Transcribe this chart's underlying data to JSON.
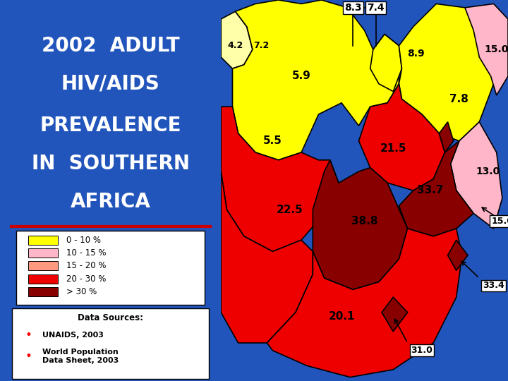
{
  "title_line1": "2002  ADULT",
  "title_line2": "HIV/AIDS",
  "title_line3": "PREVALENCE",
  "title_line4": "IN  SOUTHERN",
  "title_line5": "AFRICA",
  "bg_color": "#2255bb",
  "title_color": "#ffffff",
  "title_fontsize": 20,
  "red_line_color": "#cc0000",
  "legend_items": [
    {
      "label": "0 - 10 %",
      "color": "#ffff00"
    },
    {
      "label": "10 - 15 %",
      "color": "#ffb6c8"
    },
    {
      "label": "15 - 20 %",
      "color": "#ff9980"
    },
    {
      "label": "20 - 30 %",
      "color": "#ee0000"
    },
    {
      "label": "> 30 %",
      "color": "#880000"
    }
  ],
  "data_sources_title": "Data Sources:",
  "data_sources": [
    "UNAIDS, 2003",
    "World Population\nData Sheet, 2003"
  ],
  "colors": {
    "yellow": "#ffff00",
    "light_pink": "#ffb6c8",
    "salmon": "#ff9980",
    "red": "#ee0000",
    "dark_red": "#880000",
    "outline": "#000000",
    "map_bg": "#ffffff"
  }
}
